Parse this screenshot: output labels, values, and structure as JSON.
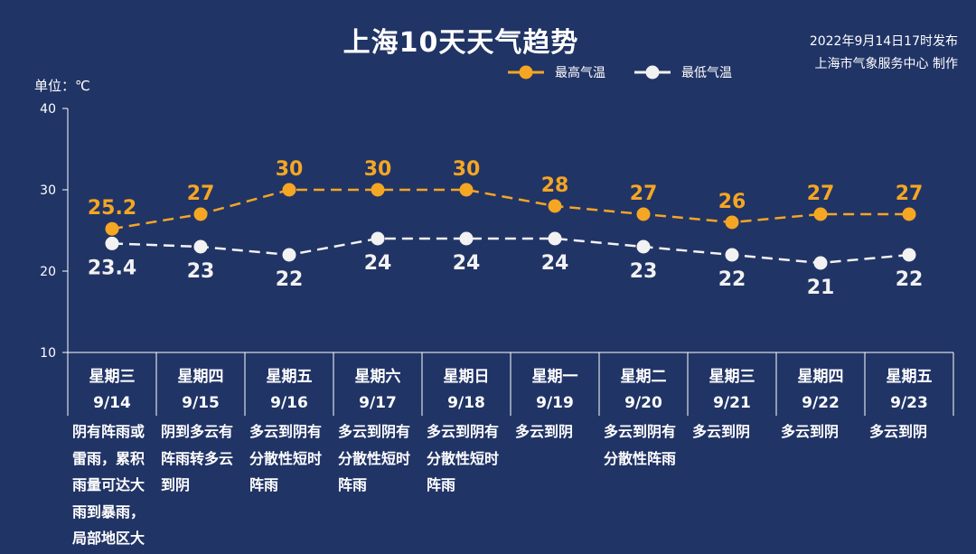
{
  "title": "上海10天天气趋势",
  "publish": {
    "line1": "2022年9月14日17时发布",
    "line2": "上海市气象服务中心 制作"
  },
  "colors": {
    "background": "#213466",
    "high": "#f5a623",
    "low": "#f2f2f2"
  },
  "chart_data": {
    "type": "line",
    "title": "上海10天天气趋势",
    "ylabel": "单位：℃",
    "ylim": [
      10,
      40
    ],
    "yticks": [
      "10",
      "20",
      "30",
      "40"
    ],
    "categories": [
      {
        "weekday": "星期三",
        "date": "9/14",
        "desc": "阴有阵雨或雷雨，累积雨量可达大雨到暴雨，局部地区大"
      },
      {
        "weekday": "星期四",
        "date": "9/15",
        "desc": "阴到多云有阵雨转多云到阴"
      },
      {
        "weekday": "星期五",
        "date": "9/16",
        "desc": "多云到阴有分散性短时阵雨"
      },
      {
        "weekday": "星期六",
        "date": "9/17",
        "desc": "多云到阴有分散性短时阵雨"
      },
      {
        "weekday": "星期日",
        "date": "9/18",
        "desc": "多云到阴有分散性短时阵雨"
      },
      {
        "weekday": "星期一",
        "date": "9/19",
        "desc": "多云到阴"
      },
      {
        "weekday": "星期二",
        "date": "9/20",
        "desc": "多云到阴有分散性阵雨"
      },
      {
        "weekday": "星期三",
        "date": "9/21",
        "desc": "多云到阴"
      },
      {
        "weekday": "星期四",
        "date": "9/22",
        "desc": "多云到阴"
      },
      {
        "weekday": "星期五",
        "date": "9/23",
        "desc": "多云到阴"
      }
    ],
    "series": [
      {
        "name": "最高气温",
        "values": [
          25.2,
          27,
          30,
          30,
          30,
          28,
          27,
          26,
          27,
          27
        ],
        "labels": [
          "25.2",
          "27",
          "30",
          "30",
          "30",
          "28",
          "27",
          "26",
          "27",
          "27"
        ],
        "color": "#f5a623",
        "label_position": "above"
      },
      {
        "name": "最低气温",
        "values": [
          23.4,
          23,
          22,
          24,
          24,
          24,
          23,
          22,
          21,
          22
        ],
        "labels": [
          "23.4",
          "23",
          "22",
          "24",
          "24",
          "24",
          "23",
          "22",
          "21",
          "22"
        ],
        "color": "#f2f2f2",
        "label_position": "below"
      }
    ],
    "legend_position": "top-right",
    "grid": false
  }
}
